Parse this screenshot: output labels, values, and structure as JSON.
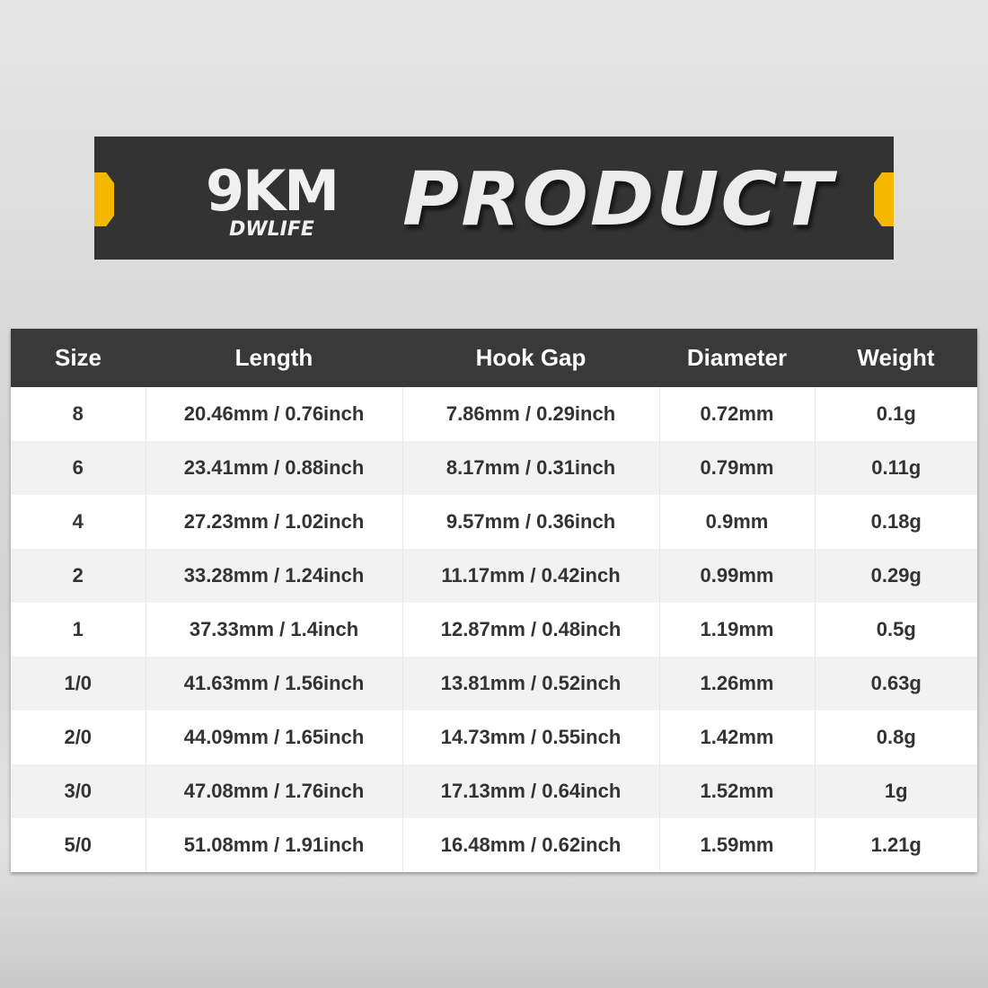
{
  "banner": {
    "brand": "9KM",
    "brand_sub": "DWLIFE",
    "title": "PRODUCT",
    "accent_color": "#f5b800"
  },
  "table": {
    "headers": [
      "Size",
      "Length",
      "Hook Gap",
      "Diameter",
      "Weight"
    ],
    "rows": [
      [
        "8",
        "20.46mm / 0.76inch",
        "7.86mm / 0.29inch",
        "0.72mm",
        "0.1g"
      ],
      [
        "6",
        "23.41mm / 0.88inch",
        "8.17mm / 0.31inch",
        "0.79mm",
        "0.11g"
      ],
      [
        "4",
        "27.23mm / 1.02inch",
        "9.57mm / 0.36inch",
        "0.9mm",
        "0.18g"
      ],
      [
        "2",
        "33.28mm / 1.24inch",
        "11.17mm / 0.42inch",
        "0.99mm",
        "0.29g"
      ],
      [
        "1",
        "37.33mm / 1.4inch",
        "12.87mm / 0.48inch",
        "1.19mm",
        "0.5g"
      ],
      [
        "1/0",
        "41.63mm / 1.56inch",
        "13.81mm / 0.52inch",
        "1.26mm",
        "0.63g"
      ],
      [
        "2/0",
        "44.09mm / 1.65inch",
        "14.73mm / 0.55inch",
        "1.42mm",
        "0.8g"
      ],
      [
        "3/0",
        "47.08mm / 1.76inch",
        "17.13mm / 0.64inch",
        "1.52mm",
        "1g"
      ],
      [
        "5/0",
        "51.08mm / 1.91inch",
        "16.48mm / 0.62inch",
        "1.59mm",
        "1.21g"
      ]
    ]
  }
}
